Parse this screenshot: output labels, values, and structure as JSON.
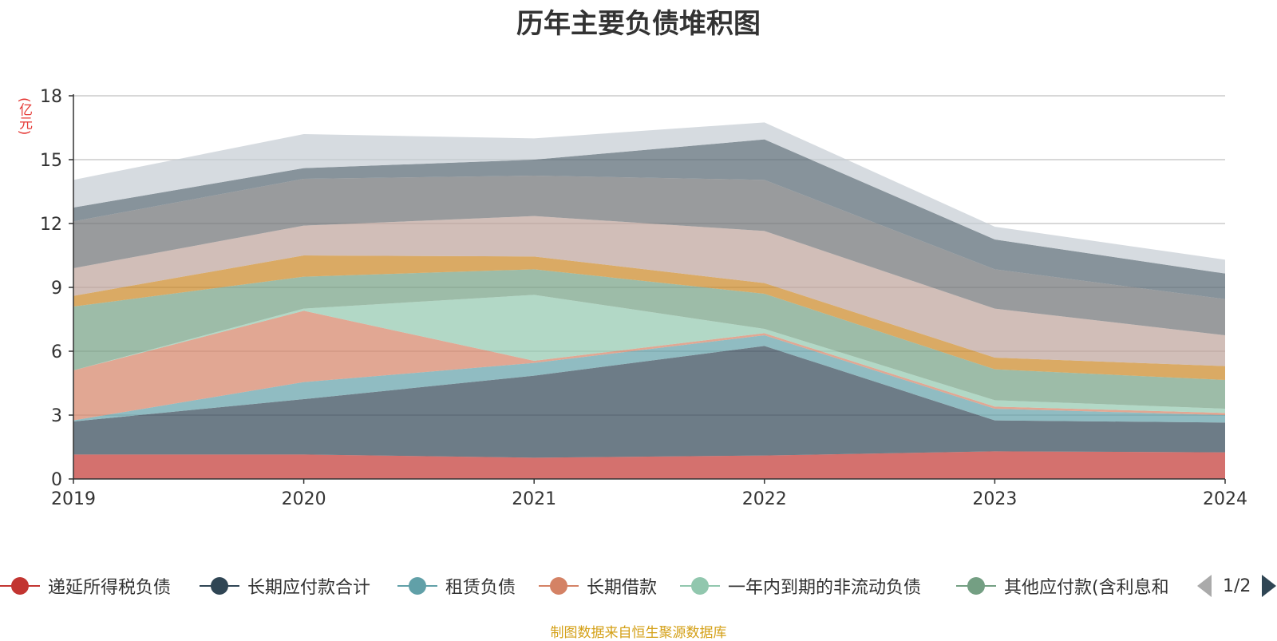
{
  "chart_data": {
    "type": "area",
    "title": "历年主要负债堆积图",
    "ylabel": "(亿元)",
    "ylim": [
      0,
      18
    ],
    "yticks": [
      0,
      3,
      6,
      9,
      12,
      15,
      18
    ],
    "x": [
      "2019",
      "2020",
      "2021",
      "2022",
      "2023",
      "2024"
    ],
    "stacked": true,
    "grid": true,
    "legend_position": "bottom",
    "series": [
      {
        "name": "递延所得税负债",
        "color": "#c23531",
        "values": [
          1.15,
          1.15,
          1.0,
          1.1,
          1.3,
          1.25
        ]
      },
      {
        "name": "长期应付款合计",
        "color": "#2f4554",
        "values": [
          1.55,
          2.6,
          3.85,
          5.15,
          1.45,
          1.4
        ]
      },
      {
        "name": "租赁负债",
        "color": "#61a0a8",
        "values": [
          0.05,
          0.8,
          0.6,
          0.5,
          0.55,
          0.35
        ]
      },
      {
        "name": "长期借款",
        "color": "#d48265",
        "values": [
          2.35,
          3.35,
          0.1,
          0.1,
          0.1,
          0.1
        ]
      },
      {
        "name": "一年内到期的非流动负债",
        "color": "#91c7ae",
        "values": [
          0.0,
          0.1,
          3.1,
          0.2,
          0.3,
          0.2
        ]
      },
      {
        "name": "其他应付款(含利息和",
        "color": "#749f83",
        "values": [
          3.0,
          1.5,
          1.2,
          1.65,
          1.45,
          1.35
        ]
      },
      {
        "name": "",
        "color": "#ca8622",
        "values": [
          0.5,
          1.0,
          0.6,
          0.5,
          0.55,
          0.65
        ]
      },
      {
        "name": "",
        "color": "#bda29a",
        "values": [
          1.3,
          1.4,
          1.9,
          2.45,
          2.3,
          1.45
        ]
      },
      {
        "name": "",
        "color": "#6e7074",
        "values": [
          2.2,
          2.2,
          1.9,
          2.4,
          1.85,
          1.7
        ]
      },
      {
        "name": "",
        "color": "#546570",
        "values": [
          0.65,
          0.5,
          0.75,
          1.9,
          1.4,
          1.2
        ]
      },
      {
        "name": "",
        "color": "#c4ccd3",
        "values": [
          1.3,
          1.6,
          1.0,
          0.8,
          0.6,
          0.65
        ]
      }
    ]
  },
  "legend": {
    "items": [
      {
        "label": "递延所得税负债",
        "color": "#c23531"
      },
      {
        "label": "长期应付款合计",
        "color": "#2f4554"
      },
      {
        "label": "租赁负债",
        "color": "#61a0a8"
      },
      {
        "label": "长期借款",
        "color": "#d48265"
      },
      {
        "label": "一年内到期的非流动负债",
        "color": "#91c7ae"
      },
      {
        "label": "其他应付款(含利息和",
        "color": "#749f83"
      }
    ],
    "page_text": "1/2"
  },
  "footer": {
    "source": "制图数据来自恒生聚源数据库"
  }
}
